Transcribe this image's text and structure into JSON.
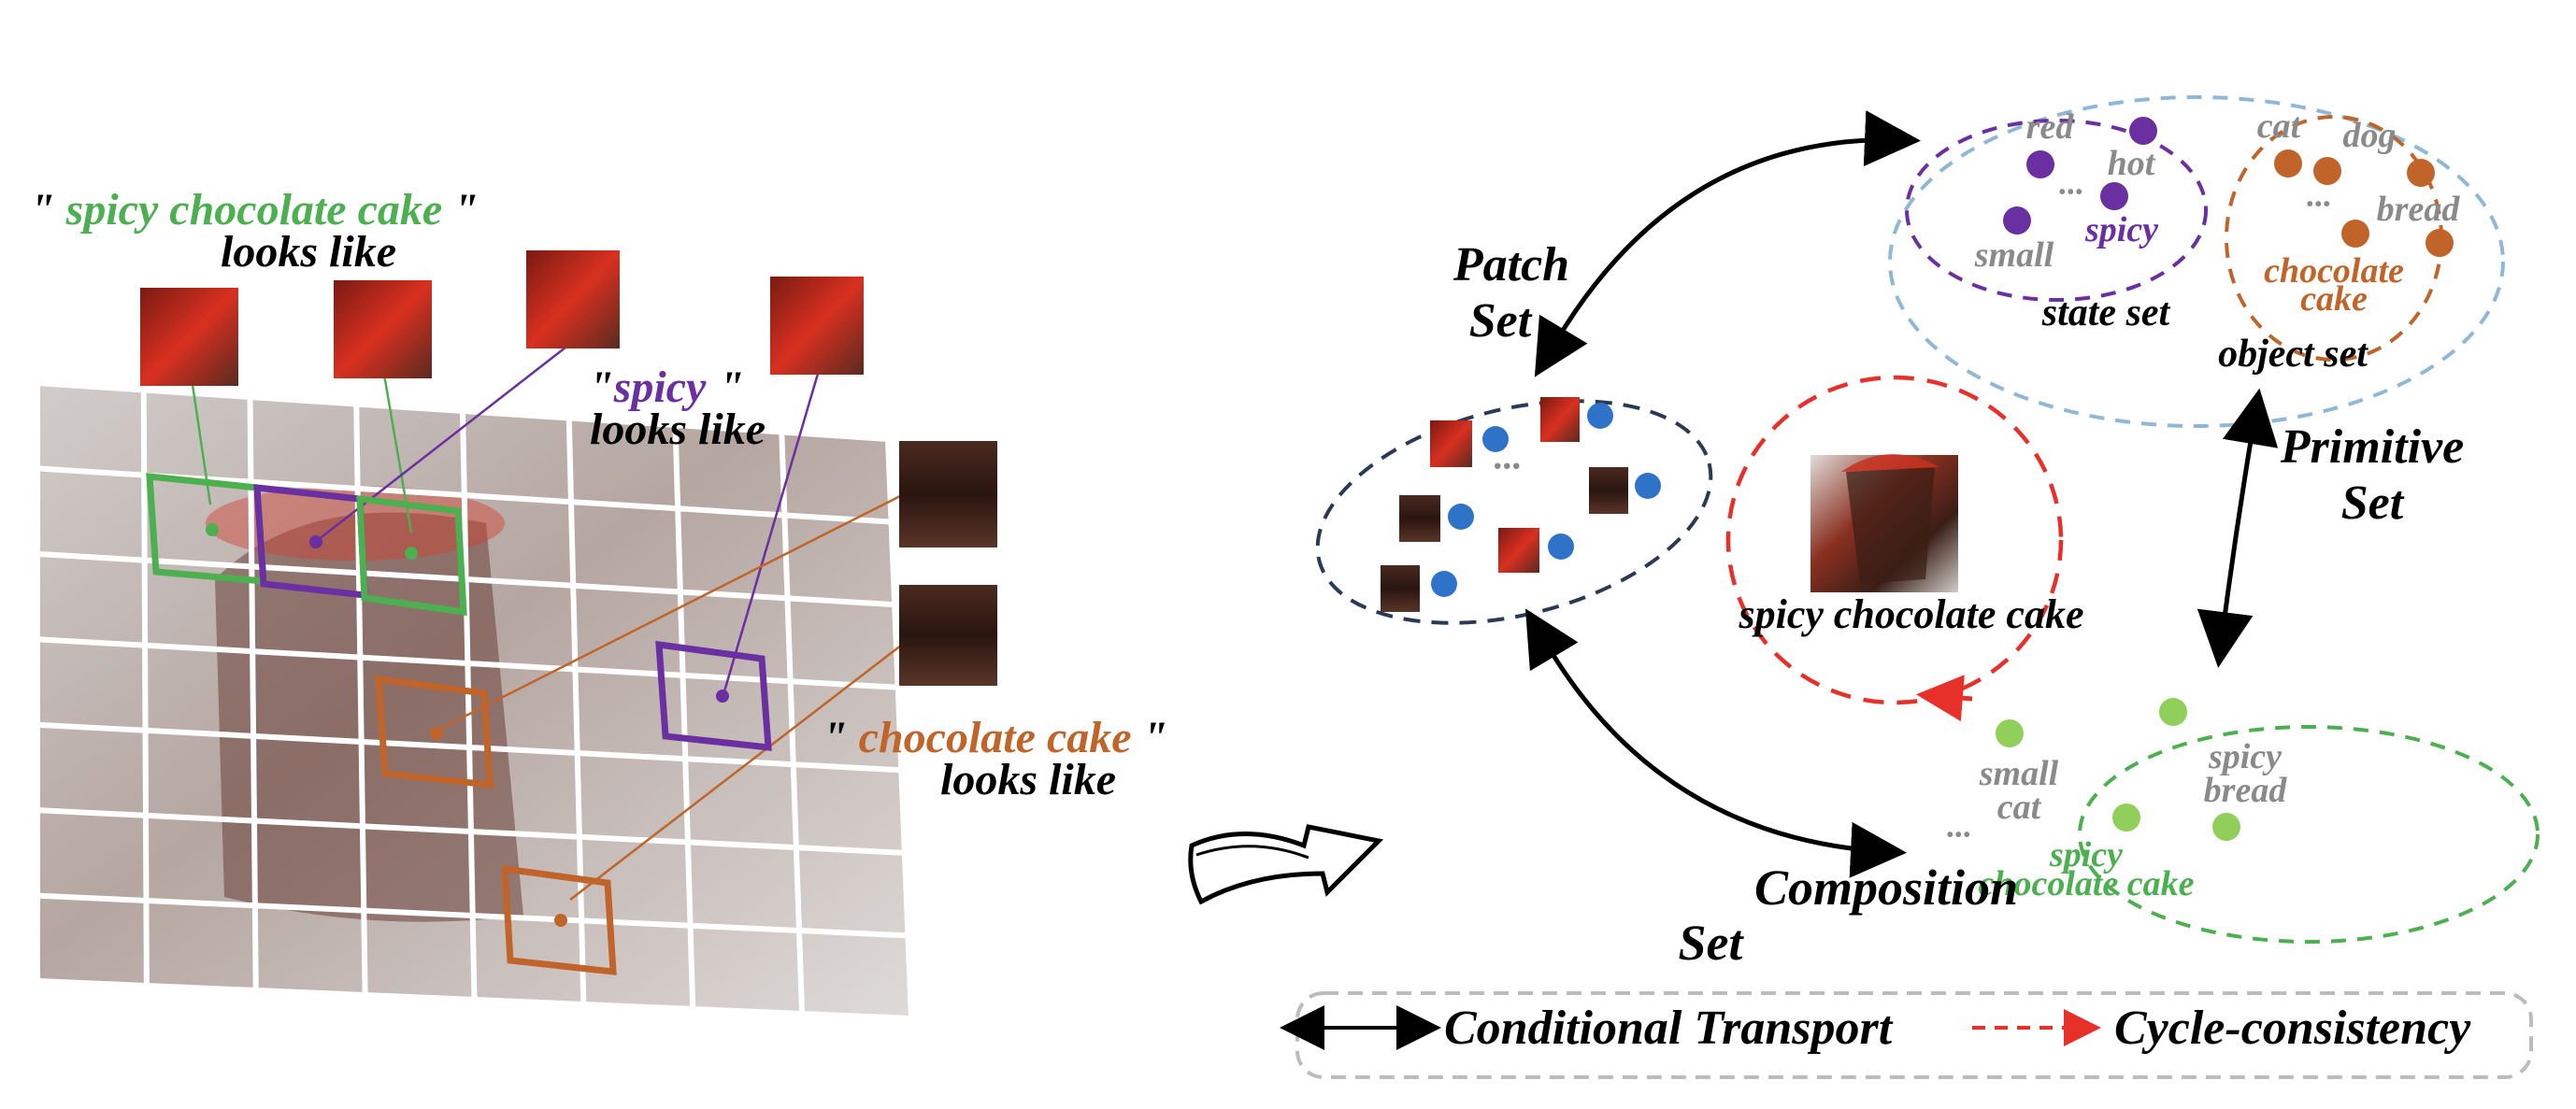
{
  "left": {
    "phrase_full": "spicy chocolate cake",
    "phrase_spicy": "spicy",
    "phrase_choc": "chocolate cake",
    "quote": "\"",
    "looks_like": "looks like"
  },
  "cycle": {
    "patch_set_line1": "Patch",
    "patch_set_line2": "Set",
    "primitive_set_line1": "Primitive",
    "primitive_set_line2": "Set",
    "composition_set_line1": "Composition",
    "composition_set_line2": "Set",
    "center_caption": "spicy chocolate cake",
    "patch_ellipsis": "···"
  },
  "primitive": {
    "state_set_label": "state set",
    "object_set_label": "object set",
    "states": [
      "red",
      "hot",
      "spicy",
      "small"
    ],
    "objects": [
      "cat",
      "dog",
      "bread",
      "chocolate",
      "cake"
    ],
    "ellipsis": "···"
  },
  "composition": {
    "items": [
      "small",
      "cat",
      "spicy",
      "bread",
      "spicy",
      "chocolate cake"
    ],
    "ellipsis": "···"
  },
  "legend": {
    "transport": "Conditional Transport",
    "cycle": "Cycle-consistency"
  },
  "colors": {
    "green": "#4caf50",
    "purple": "#6a2fa0",
    "orange": "#c0642a",
    "blue": "#2f73c8",
    "gray_text": "#8a8a8a",
    "red_dash": "#e8302a",
    "dark_navy": "#2a3a55",
    "light_blue": "#8fb8d8",
    "light_green": "#8fcf5a"
  }
}
